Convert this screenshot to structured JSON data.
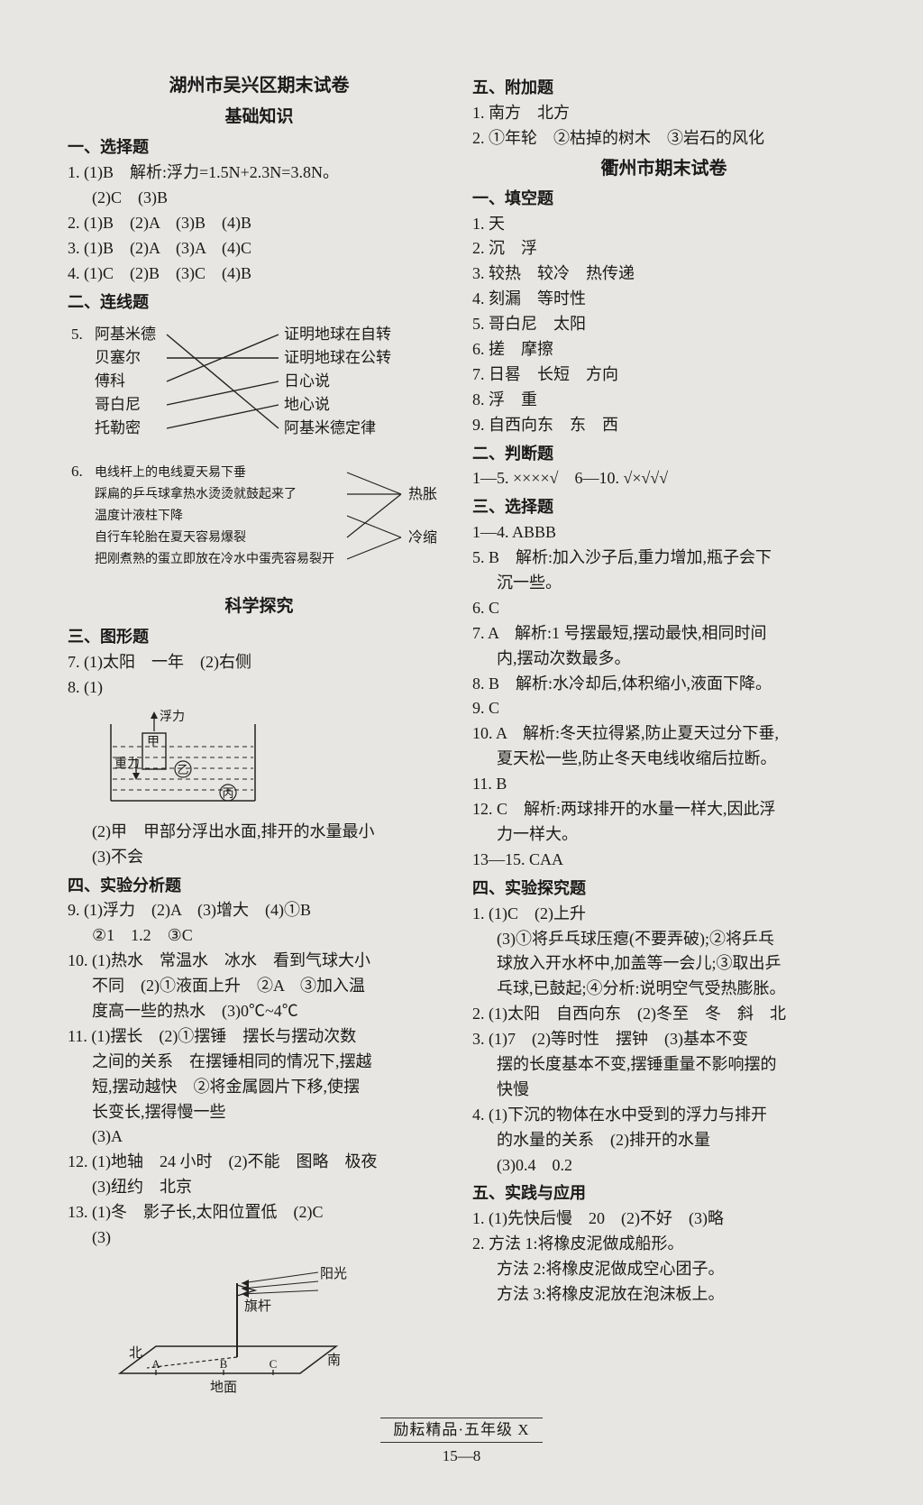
{
  "page": {
    "background_color": "#e8e6e2",
    "text_color": "#1a1a1a",
    "diagram_line_color": "#222222",
    "font_size_body": 18,
    "font_size_title": 20,
    "font_size_subtitle": 19
  },
  "left": {
    "title": "湖州市吴兴区期末试卷",
    "subtitle": "基础知识",
    "s1_head": "一、选择题",
    "s1": {
      "q1": "1. (1)B　解析:浮力=1.5N+2.3N=3.8N。",
      "q1b": "(2)C　(3)B",
      "q2": "2. (1)B　(2)A　(3)B　(4)B",
      "q3": "3. (1)B　(2)A　(3)A　(4)C",
      "q4": "4. (1)C　(2)B　(3)C　(4)B"
    },
    "s2_head": "二、连线题",
    "s2": {
      "q5_label": "5.",
      "q5_left": [
        "阿基米德",
        "贝塞尔",
        "傅科",
        "哥白尼",
        "托勒密"
      ],
      "q5_right": [
        "证明地球在自转",
        "证明地球在公转",
        "日心说",
        "地心说",
        "阿基米德定律"
      ],
      "q5_edges": [
        [
          0,
          4
        ],
        [
          1,
          1
        ],
        [
          2,
          0
        ],
        [
          3,
          2
        ],
        [
          4,
          3
        ]
      ],
      "q6_label": "6.",
      "q6_left": [
        "电线杆上的电线夏天易下垂",
        "踩扁的乒乓球拿热水烫烫就鼓起来了",
        "温度计液柱下降",
        "自行车轮胎在夏天容易爆裂",
        "把刚煮熟的蛋立即放在冷水中蛋壳容易裂开"
      ],
      "q6_right": [
        "热胀",
        "冷缩"
      ],
      "q6_edges": [
        [
          0,
          0
        ],
        [
          1,
          0
        ],
        [
          3,
          0
        ],
        [
          2,
          1
        ],
        [
          4,
          1
        ]
      ]
    },
    "mid_title": "科学探究",
    "s3_head": "三、图形题",
    "s3": {
      "q7": "7. (1)太阳　一年　(2)右侧",
      "q8a": "8. (1)",
      "q8_fig": {
        "labels": {
          "fu": "浮力",
          "zhong": "重力",
          "jia": "甲",
          "yi": "乙",
          "bing": "丙"
        },
        "water_line_color": "#222222",
        "border_color": "#222222"
      },
      "q8b": "(2)甲　甲部分浮出水面,排开的水量最小",
      "q8c": "(3)不会"
    },
    "s4_head": "四、实验分析题",
    "s4": {
      "q9a": "9. (1)浮力　(2)A　(3)增大　(4)①B",
      "q9b": "②1　1.2　③C",
      "q10a": "10. (1)热水　常温水　冰水　看到气球大小",
      "q10b": "不同　(2)①液面上升　②A　③加入温",
      "q10c": "度高一些的热水　(3)0℃~4℃",
      "q11a": "11. (1)摆长　(2)①摆锤　摆长与摆动次数",
      "q11b": "之间的关系　在摆锤相同的情况下,摆越",
      "q11c": "短,摆动越快　②将金属圆片下移,使摆",
      "q11d": "长变长,摆得慢一些",
      "q11e": "(3)A",
      "q12a": "12. (1)地轴　24 小时　(2)不能　图略　极夜",
      "q12b": "(3)纽约　北京",
      "q13a": "13. (1)冬　影子长,太阳位置低　(2)C",
      "q13b": "(3)",
      "q13_fig": {
        "labels": {
          "sun": "阳光",
          "pole": "旗杆",
          "north": "北",
          "south": "南",
          "ground": "地面",
          "A": "A",
          "B": "B",
          "C": "C"
        },
        "line_color": "#222222"
      }
    }
  },
  "right": {
    "s5_head": "五、附加题",
    "s5": {
      "q1": "1. 南方　北方",
      "q2": "2. ①年轮　②枯掉的树木　③岩石的风化"
    },
    "title2": "衢州市期末试卷",
    "r1_head": "一、填空题",
    "r1": {
      "q1": "1. 天",
      "q2": "2. 沉　浮",
      "q3": "3. 较热　较冷　热传递",
      "q4": "4. 刻漏　等时性",
      "q5": "5. 哥白尼　太阳",
      "q6": "6. 搓　摩擦",
      "q7": "7. 日晷　长短　方向",
      "q8": "8. 浮　重",
      "q9": "9. 自西向东　东　西"
    },
    "r2_head": "二、判断题",
    "r2": {
      "a": "1—5. ××××√　6—10. √×√√√"
    },
    "r3_head": "三、选择题",
    "r3": {
      "q14": "1—4. ABBB",
      "q5a": "5. B　解析:加入沙子后,重力增加,瓶子会下",
      "q5b": "沉一些。",
      "q6": "6. C",
      "q7a": "7. A　解析:1 号摆最短,摆动最快,相同时间",
      "q7b": "内,摆动次数最多。",
      "q8": "8. B　解析:水冷却后,体积缩小,液面下降。",
      "q9": "9. C",
      "q10a": "10. A　解析:冬天拉得紧,防止夏天过分下垂,",
      "q10b": "夏天松一些,防止冬天电线收缩后拉断。",
      "q11": "11. B",
      "q12a": "12. C　解析:两球排开的水量一样大,因此浮",
      "q12b": "力一样大。",
      "q1315": "13—15. CAA"
    },
    "r4_head": "四、实验探究题",
    "r4": {
      "q1a": "1. (1)C　(2)上升",
      "q1b": "(3)①将乒乓球压瘪(不要弄破);②将乒乓",
      "q1c": "球放入开水杯中,加盖等一会儿;③取出乒",
      "q1d": "乓球,已鼓起;④分析:说明空气受热膨胀。",
      "q2": "2. (1)太阳　自西向东　(2)冬至　冬　斜　北",
      "q3a": "3. (1)7　(2)等时性　摆钟　(3)基本不变",
      "q3b": "摆的长度基本不变,摆锤重量不影响摆的",
      "q3c": "快慢",
      "q4a": "4. (1)下沉的物体在水中受到的浮力与排开",
      "q4b": "的水量的关系　(2)排开的水量",
      "q4c": "(3)0.4　0.2"
    },
    "r5_head": "五、实践与应用",
    "r5": {
      "q1": "1. (1)先快后慢　20　(2)不好　(3)略",
      "q2a": "2. 方法 1:将橡皮泥做成船形。",
      "q2b": "方法 2:将橡皮泥做成空心团子。",
      "q2c": "方法 3:将橡皮泥放在泡沫板上。"
    }
  },
  "footer": {
    "brand": "励耘精品·五年级 X",
    "page_num": "15—8"
  }
}
